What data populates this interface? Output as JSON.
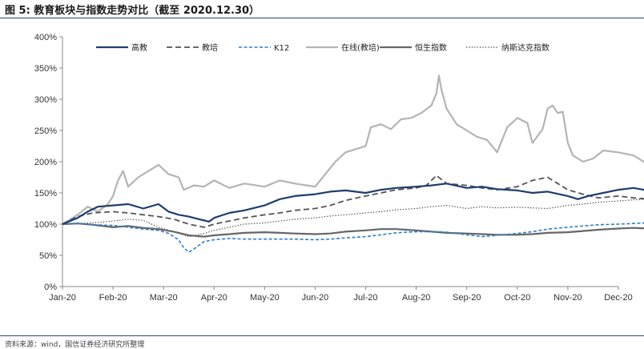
{
  "header": {
    "title": "图 5:  教育板块与指数走势对比（截至 2020.12.30）"
  },
  "footer": {
    "source": "资料来源：wind，国信证券经济研究所整理"
  },
  "chart_data": {
    "type": "line",
    "title": "图 5:  教育板块与指数走势对比（截至 2020.12.30）",
    "xlabel": "",
    "ylabel": "",
    "ylim": [
      0,
      400
    ],
    "yticks": [
      "0%",
      "50%",
      "100%",
      "150%",
      "200%",
      "250%",
      "300%",
      "350%",
      "400%"
    ],
    "x": [
      "Jan-20",
      "Feb-20",
      "Mar-20",
      "Apr-20",
      "May-20",
      "Jun-20",
      "Jul-20",
      "Aug-20",
      "Sep-20",
      "Oct-20",
      "Nov-20",
      "Dec-20"
    ],
    "legend_position": "top",
    "grid": false,
    "series": [
      {
        "name": "高教",
        "color": "#1f3d6e",
        "style": "solid",
        "width": 2.2,
        "values": [
          [
            0,
            100
          ],
          [
            0.3,
            110
          ],
          [
            0.5,
            120
          ],
          [
            0.7,
            128
          ],
          [
            1.0,
            130
          ],
          [
            1.3,
            132
          ],
          [
            1.6,
            125
          ],
          [
            1.9,
            132
          ],
          [
            2.1,
            120
          ],
          [
            2.3,
            115
          ],
          [
            2.5,
            112
          ],
          [
            2.7,
            108
          ],
          [
            2.9,
            104
          ],
          [
            3.0,
            110
          ],
          [
            3.3,
            118
          ],
          [
            3.6,
            122
          ],
          [
            4.0,
            130
          ],
          [
            4.3,
            140
          ],
          [
            4.6,
            145
          ],
          [
            5.0,
            148
          ],
          [
            5.3,
            152
          ],
          [
            5.6,
            154
          ],
          [
            6.0,
            150
          ],
          [
            6.3,
            155
          ],
          [
            6.6,
            158
          ],
          [
            7.0,
            160
          ],
          [
            7.3,
            162
          ],
          [
            7.6,
            165
          ],
          [
            8.0,
            158
          ],
          [
            8.3,
            160
          ],
          [
            8.6,
            156
          ],
          [
            9.0,
            154
          ],
          [
            9.3,
            150
          ],
          [
            9.6,
            152
          ],
          [
            10.0,
            145
          ],
          [
            10.2,
            140
          ],
          [
            10.4,
            145
          ],
          [
            10.7,
            150
          ],
          [
            11.0,
            155
          ],
          [
            11.3,
            158
          ],
          [
            11.5,
            155
          ],
          [
            11.8,
            160
          ]
        ]
      },
      {
        "name": "教培",
        "color": "#555555",
        "style": "dash",
        "width": 1.8,
        "values": [
          [
            0,
            100
          ],
          [
            0.3,
            112
          ],
          [
            0.6,
            118
          ],
          [
            1.0,
            120
          ],
          [
            1.3,
            118
          ],
          [
            1.6,
            115
          ],
          [
            1.9,
            112
          ],
          [
            2.2,
            108
          ],
          [
            2.5,
            100
          ],
          [
            2.8,
            95
          ],
          [
            3.0,
            100
          ],
          [
            3.3,
            105
          ],
          [
            3.6,
            110
          ],
          [
            4.0,
            115
          ],
          [
            4.3,
            118
          ],
          [
            4.6,
            122
          ],
          [
            5.0,
            125
          ],
          [
            5.3,
            130
          ],
          [
            5.6,
            138
          ],
          [
            6.0,
            145
          ],
          [
            6.3,
            150
          ],
          [
            6.6,
            155
          ],
          [
            7.0,
            158
          ],
          [
            7.2,
            162
          ],
          [
            7.4,
            178
          ],
          [
            7.6,
            165
          ],
          [
            8.0,
            162
          ],
          [
            8.3,
            158
          ],
          [
            8.6,
            155
          ],
          [
            9.0,
            160
          ],
          [
            9.3,
            170
          ],
          [
            9.6,
            175
          ],
          [
            9.8,
            165
          ],
          [
            10.0,
            155
          ],
          [
            10.3,
            148
          ],
          [
            10.6,
            142
          ],
          [
            11.0,
            145
          ],
          [
            11.3,
            142
          ],
          [
            11.6,
            140
          ],
          [
            11.8,
            145
          ]
        ]
      },
      {
        "name": "K12",
        "color": "#2e7fd0",
        "style": "dash-small",
        "width": 1.6,
        "values": [
          [
            0,
            100
          ],
          [
            0.3,
            101
          ],
          [
            0.6,
            99
          ],
          [
            1.0,
            98
          ],
          [
            1.3,
            95
          ],
          [
            1.6,
            92
          ],
          [
            1.9,
            90
          ],
          [
            2.1,
            85
          ],
          [
            2.3,
            75
          ],
          [
            2.4,
            62
          ],
          [
            2.5,
            55
          ],
          [
            2.6,
            60
          ],
          [
            2.8,
            72
          ],
          [
            3.0,
            75
          ],
          [
            3.3,
            77
          ],
          [
            3.6,
            76
          ],
          [
            4.0,
            76
          ],
          [
            4.3,
            76
          ],
          [
            4.6,
            76
          ],
          [
            5.0,
            75
          ],
          [
            5.3,
            76
          ],
          [
            5.6,
            78
          ],
          [
            6.0,
            80
          ],
          [
            6.3,
            83
          ],
          [
            6.6,
            86
          ],
          [
            7.0,
            88
          ],
          [
            7.3,
            88
          ],
          [
            7.6,
            87
          ],
          [
            8.0,
            83
          ],
          [
            8.3,
            80
          ],
          [
            8.6,
            82
          ],
          [
            9.0,
            85
          ],
          [
            9.3,
            88
          ],
          [
            9.6,
            92
          ],
          [
            10.0,
            95
          ],
          [
            10.3,
            97
          ],
          [
            10.6,
            99
          ],
          [
            11.0,
            100
          ],
          [
            11.3,
            101
          ],
          [
            11.6,
            102
          ],
          [
            11.8,
            102
          ]
        ]
      },
      {
        "name": "在线(教培)",
        "color": "#b4b4b4",
        "style": "solid",
        "width": 2.2,
        "values": [
          [
            0,
            100
          ],
          [
            0.3,
            115
          ],
          [
            0.5,
            128
          ],
          [
            0.7,
            120
          ],
          [
            0.9,
            132
          ],
          [
            1.0,
            145
          ],
          [
            1.1,
            170
          ],
          [
            1.2,
            185
          ],
          [
            1.3,
            160
          ],
          [
            1.5,
            175
          ],
          [
            1.7,
            185
          ],
          [
            1.9,
            195
          ],
          [
            2.1,
            180
          ],
          [
            2.3,
            175
          ],
          [
            2.4,
            155
          ],
          [
            2.6,
            162
          ],
          [
            2.8,
            160
          ],
          [
            3.0,
            170
          ],
          [
            3.3,
            158
          ],
          [
            3.6,
            165
          ],
          [
            4.0,
            160
          ],
          [
            4.3,
            170
          ],
          [
            4.6,
            165
          ],
          [
            5.0,
            160
          ],
          [
            5.2,
            180
          ],
          [
            5.4,
            200
          ],
          [
            5.6,
            215
          ],
          [
            5.8,
            220
          ],
          [
            6.0,
            225
          ],
          [
            6.1,
            255
          ],
          [
            6.3,
            260
          ],
          [
            6.5,
            252
          ],
          [
            6.7,
            268
          ],
          [
            6.9,
            270
          ],
          [
            7.1,
            278
          ],
          [
            7.3,
            290
          ],
          [
            7.4,
            310
          ],
          [
            7.45,
            338
          ],
          [
            7.5,
            315
          ],
          [
            7.6,
            285
          ],
          [
            7.8,
            260
          ],
          [
            8.0,
            250
          ],
          [
            8.2,
            240
          ],
          [
            8.4,
            235
          ],
          [
            8.6,
            215
          ],
          [
            8.8,
            255
          ],
          [
            9.0,
            270
          ],
          [
            9.2,
            262
          ],
          [
            9.3,
            230
          ],
          [
            9.5,
            252
          ],
          [
            9.6,
            285
          ],
          [
            9.7,
            290
          ],
          [
            9.8,
            278
          ],
          [
            9.9,
            280
          ],
          [
            10.0,
            230
          ],
          [
            10.1,
            210
          ],
          [
            10.3,
            200
          ],
          [
            10.5,
            205
          ],
          [
            10.7,
            218
          ],
          [
            11.0,
            215
          ],
          [
            11.3,
            210
          ],
          [
            11.5,
            200
          ],
          [
            11.7,
            190
          ],
          [
            11.8,
            185
          ]
        ]
      },
      {
        "name": "恒生指数",
        "color": "#666666",
        "style": "solid",
        "width": 2.2,
        "values": [
          [
            0,
            100
          ],
          [
            0.3,
            101
          ],
          [
            0.6,
            99
          ],
          [
            1.0,
            95
          ],
          [
            1.3,
            97
          ],
          [
            1.6,
            94
          ],
          [
            1.9,
            92
          ],
          [
            2.2,
            88
          ],
          [
            2.5,
            82
          ],
          [
            2.8,
            80
          ],
          [
            3.0,
            82
          ],
          [
            3.3,
            84
          ],
          [
            3.6,
            86
          ],
          [
            4.0,
            87
          ],
          [
            4.3,
            86
          ],
          [
            4.6,
            85
          ],
          [
            5.0,
            84
          ],
          [
            5.3,
            85
          ],
          [
            5.6,
            88
          ],
          [
            6.0,
            90
          ],
          [
            6.3,
            92
          ],
          [
            6.6,
            92
          ],
          [
            7.0,
            90
          ],
          [
            7.3,
            88
          ],
          [
            7.6,
            86
          ],
          [
            8.0,
            85
          ],
          [
            8.3,
            84
          ],
          [
            8.6,
            83
          ],
          [
            9.0,
            83
          ],
          [
            9.3,
            84
          ],
          [
            9.6,
            86
          ],
          [
            10.0,
            87
          ],
          [
            10.3,
            89
          ],
          [
            10.6,
            91
          ],
          [
            11.0,
            93
          ],
          [
            11.3,
            94
          ],
          [
            11.6,
            93
          ],
          [
            11.8,
            94
          ]
        ]
      },
      {
        "name": "纳斯达克指数",
        "color": "#333333",
        "style": "dot",
        "width": 1.2,
        "values": [
          [
            0,
            100
          ],
          [
            0.3,
            101
          ],
          [
            0.6,
            102
          ],
          [
            1.0,
            105
          ],
          [
            1.3,
            108
          ],
          [
            1.6,
            106
          ],
          [
            1.9,
            95
          ],
          [
            2.2,
            88
          ],
          [
            2.5,
            80
          ],
          [
            2.8,
            85
          ],
          [
            3.0,
            90
          ],
          [
            3.3,
            95
          ],
          [
            3.6,
            100
          ],
          [
            4.0,
            102
          ],
          [
            4.3,
            105
          ],
          [
            4.6,
            108
          ],
          [
            5.0,
            110
          ],
          [
            5.3,
            113
          ],
          [
            5.6,
            115
          ],
          [
            6.0,
            118
          ],
          [
            6.3,
            120
          ],
          [
            6.6,
            123
          ],
          [
            7.0,
            125
          ],
          [
            7.3,
            128
          ],
          [
            7.6,
            130
          ],
          [
            8.0,
            125
          ],
          [
            8.3,
            128
          ],
          [
            8.6,
            126
          ],
          [
            9.0,
            127
          ],
          [
            9.3,
            126
          ],
          [
            9.6,
            125
          ],
          [
            10.0,
            130
          ],
          [
            10.3,
            132
          ],
          [
            10.6,
            135
          ],
          [
            11.0,
            137
          ],
          [
            11.3,
            139
          ],
          [
            11.6,
            140
          ],
          [
            11.8,
            141
          ]
        ]
      }
    ]
  }
}
